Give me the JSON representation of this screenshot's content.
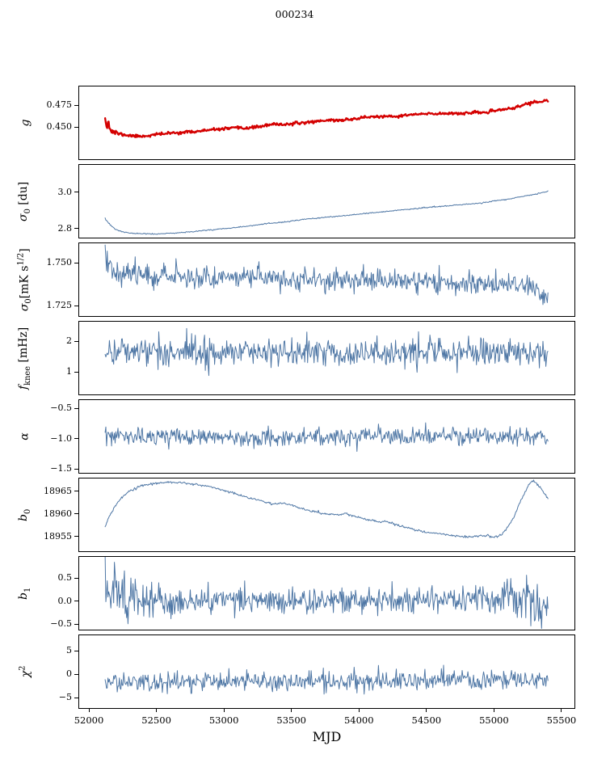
{
  "chart_data": {
    "type": "line",
    "title": "000234",
    "xlabel": "MJD",
    "x_range": [
      51922,
      55602
    ],
    "x_ticks": [
      52000,
      52500,
      53000,
      53500,
      54000,
      54500,
      55000,
      55500
    ],
    "x_tick_labels": [
      "52000",
      "52500",
      "53000",
      "53500",
      "54000",
      "54500",
      "55000",
      "55500"
    ],
    "x_data_range": [
      52120,
      55400
    ],
    "n_points": 620,
    "colors": {
      "line": "#4f77a5",
      "marker": "#d40000",
      "black": "#000000"
    },
    "legend": "none",
    "grid": false,
    "panels": [
      {
        "id": "g",
        "style": "marker-line",
        "seed": 11,
        "ylim": [
          0.4125,
          0.4975
        ],
        "yticks": [
          {
            "v": 0.45,
            "label": "0.450"
          },
          {
            "v": 0.475,
            "label": "0.475"
          }
        ],
        "ylabel_segments": [
          {
            "t": "g",
            "italic": true
          }
        ],
        "mean_keys": [
          [
            52120,
            0.4655
          ],
          [
            52130,
            0.452
          ],
          [
            52140,
            0.46
          ],
          [
            52155,
            0.4475
          ],
          [
            52170,
            0.4455
          ],
          [
            52200,
            0.4435
          ],
          [
            52250,
            0.4415
          ],
          [
            52300,
            0.4405
          ],
          [
            52350,
            0.4398
          ],
          [
            52400,
            0.4398
          ],
          [
            52450,
            0.4405
          ],
          [
            52500,
            0.4418
          ],
          [
            52600,
            0.4432
          ],
          [
            52700,
            0.4442
          ],
          [
            52800,
            0.4452
          ],
          [
            52900,
            0.4468
          ],
          [
            53000,
            0.4482
          ],
          [
            53050,
            0.4488
          ],
          [
            53100,
            0.4492
          ],
          [
            53150,
            0.4488
          ],
          [
            53250,
            0.4505
          ],
          [
            53350,
            0.4528
          ],
          [
            53400,
            0.4535
          ],
          [
            53450,
            0.4532
          ],
          [
            53550,
            0.4545
          ],
          [
            53650,
            0.4562
          ],
          [
            53750,
            0.4578
          ],
          [
            53800,
            0.4582
          ],
          [
            53850,
            0.4578
          ],
          [
            53950,
            0.4592
          ],
          [
            54050,
            0.4615
          ],
          [
            54150,
            0.4622
          ],
          [
            54250,
            0.4618
          ],
          [
            54300,
            0.4628
          ],
          [
            54400,
            0.4645
          ],
          [
            54500,
            0.4652
          ],
          [
            54600,
            0.4655
          ],
          [
            54700,
            0.4662
          ],
          [
            54750,
            0.4658
          ],
          [
            54850,
            0.4665
          ],
          [
            54950,
            0.4672
          ],
          [
            55000,
            0.4682
          ],
          [
            55050,
            0.4702
          ],
          [
            55100,
            0.4712
          ],
          [
            55150,
            0.4718
          ],
          [
            55200,
            0.4745
          ],
          [
            55250,
            0.4772
          ],
          [
            55300,
            0.4788
          ],
          [
            55350,
            0.4792
          ],
          [
            55400,
            0.4805
          ]
        ],
        "noise_keys": [
          [
            52120,
            0.0045
          ],
          [
            52160,
            0.002
          ],
          [
            52260,
            0.0008
          ],
          [
            55400,
            0.0008
          ]
        ]
      },
      {
        "id": "sigma0-du",
        "style": "line",
        "seed": 23,
        "ylim": [
          2.746,
          3.155
        ],
        "yticks": [
          {
            "v": 2.8,
            "label": "2.8"
          },
          {
            "v": 3.0,
            "label": "3.0"
          }
        ],
        "ylabel_segments": [
          {
            "t": "σ",
            "italic": true
          },
          {
            "t": "0",
            "sub": true
          },
          {
            "t": " [du]"
          }
        ],
        "mean_keys": [
          [
            52120,
            2.853
          ],
          [
            52150,
            2.825
          ],
          [
            52200,
            2.795
          ],
          [
            52250,
            2.782
          ],
          [
            52300,
            2.775
          ],
          [
            52400,
            2.772
          ],
          [
            52500,
            2.77
          ],
          [
            52600,
            2.774
          ],
          [
            52700,
            2.779
          ],
          [
            52800,
            2.786
          ],
          [
            52900,
            2.793
          ],
          [
            53000,
            2.8
          ],
          [
            53100,
            2.808
          ],
          [
            53200,
            2.816
          ],
          [
            53300,
            2.825
          ],
          [
            53400,
            2.833
          ],
          [
            53500,
            2.841
          ],
          [
            53600,
            2.851
          ],
          [
            53700,
            2.859
          ],
          [
            53800,
            2.865
          ],
          [
            53900,
            2.871
          ],
          [
            54000,
            2.879
          ],
          [
            54100,
            2.887
          ],
          [
            54200,
            2.894
          ],
          [
            54300,
            2.902
          ],
          [
            54400,
            2.909
          ],
          [
            54500,
            2.916
          ],
          [
            54600,
            2.922
          ],
          [
            54700,
            2.928
          ],
          [
            54800,
            2.934
          ],
          [
            54900,
            2.94
          ],
          [
            55000,
            2.952
          ],
          [
            55100,
            2.962
          ],
          [
            55200,
            2.975
          ],
          [
            55300,
            2.988
          ],
          [
            55400,
            3.005
          ]
        ],
        "noise_keys": [
          [
            52120,
            0.003
          ],
          [
            52250,
            0.0015
          ],
          [
            55400,
            0.0015
          ]
        ]
      },
      {
        "id": "sigma0-mks",
        "style": "line",
        "seed": 37,
        "ylim": [
          1.7184,
          1.7618
        ],
        "yticks": [
          {
            "v": 1.725,
            "label": "1.725"
          },
          {
            "v": 1.75,
            "label": "1.750"
          }
        ],
        "ylabel_segments": [
          {
            "t": "σ",
            "italic": true
          },
          {
            "t": "0",
            "sub": true
          },
          {
            "t": "[mK s"
          },
          {
            "t": "1/2",
            "sup": true
          },
          {
            "t": "]"
          }
        ],
        "mean_keys": [
          [
            52120,
            1.7555
          ],
          [
            52140,
            1.748
          ],
          [
            52160,
            1.7505
          ],
          [
            52200,
            1.7445
          ],
          [
            52300,
            1.7435
          ],
          [
            52400,
            1.744
          ],
          [
            52500,
            1.7425
          ],
          [
            52700,
            1.742
          ],
          [
            52900,
            1.7415
          ],
          [
            53100,
            1.742
          ],
          [
            53300,
            1.7415
          ],
          [
            53500,
            1.74
          ],
          [
            53700,
            1.7405
          ],
          [
            53900,
            1.7395
          ],
          [
            54100,
            1.7398
          ],
          [
            54300,
            1.7392
          ],
          [
            54500,
            1.7388
          ],
          [
            54700,
            1.7385
          ],
          [
            54900,
            1.738
          ],
          [
            55000,
            1.7375
          ],
          [
            55100,
            1.736
          ],
          [
            55200,
            1.7378
          ],
          [
            55300,
            1.7365
          ],
          [
            55350,
            1.73
          ],
          [
            55400,
            1.7315
          ]
        ],
        "noise_keys": [
          [
            52120,
            0.0042
          ],
          [
            52200,
            0.0034
          ],
          [
            53000,
            0.0032
          ],
          [
            55400,
            0.0032
          ]
        ]
      },
      {
        "id": "fknee",
        "style": "line",
        "seed": 41,
        "ylim": [
          0.24,
          2.66
        ],
        "yticks": [
          {
            "v": 1,
            "label": "1"
          },
          {
            "v": 2,
            "label": "2"
          }
        ],
        "ylabel_segments": [
          {
            "t": "f",
            "italic": true
          },
          {
            "t": "knee",
            "sub": true
          },
          {
            "t": " [mHz]"
          }
        ],
        "mean_keys": [
          [
            52120,
            1.7
          ],
          [
            52400,
            1.67
          ],
          [
            53000,
            1.65
          ],
          [
            54000,
            1.63
          ],
          [
            55000,
            1.64
          ],
          [
            55400,
            1.6
          ]
        ],
        "noise_keys": [
          [
            52120,
            0.23
          ],
          [
            55400,
            0.23
          ]
        ]
      },
      {
        "id": "alpha",
        "style": "line",
        "seed": 53,
        "ylim": [
          -1.58,
          -0.353
        ],
        "yticks": [
          {
            "v": -1.5,
            "label": "−1.5"
          },
          {
            "v": -1.0,
            "label": "−1.0"
          },
          {
            "v": -0.5,
            "label": "−0.5"
          }
        ],
        "ylabel_segments": [
          {
            "t": "α",
            "italic": true
          }
        ],
        "mean_keys": [
          [
            52120,
            -0.97
          ],
          [
            53000,
            -0.98
          ],
          [
            54000,
            -0.975
          ],
          [
            55400,
            -0.96
          ]
        ],
        "noise_keys": [
          [
            52120,
            0.07
          ],
          [
            55400,
            0.07
          ]
        ]
      },
      {
        "id": "b0",
        "style": "line",
        "seed": 67,
        "ylim": [
          18951.6,
          18968.0
        ],
        "yticks": [
          {
            "v": 18955,
            "label": "18955"
          },
          {
            "v": 18960,
            "label": "18960"
          },
          {
            "v": 18965,
            "label": "18965"
          }
        ],
        "ylabel_segments": [
          {
            "t": "b",
            "italic": true
          },
          {
            "t": "0",
            "sub": true
          }
        ],
        "mean_keys": [
          [
            52120,
            18957.2
          ],
          [
            52150,
            18959.5
          ],
          [
            52200,
            18962.0
          ],
          [
            52250,
            18963.8
          ],
          [
            52300,
            18965.0
          ],
          [
            52400,
            18966.3
          ],
          [
            52500,
            18966.8
          ],
          [
            52600,
            18967.0
          ],
          [
            52700,
            18966.9
          ],
          [
            52800,
            18966.5
          ],
          [
            52900,
            18966.0
          ],
          [
            53000,
            18965.2
          ],
          [
            53100,
            18964.3
          ],
          [
            53200,
            18963.4
          ],
          [
            53300,
            18962.7
          ],
          [
            53350,
            18962.3
          ],
          [
            53450,
            18962.4
          ],
          [
            53550,
            18961.5
          ],
          [
            53650,
            18960.6
          ],
          [
            53750,
            18960.0
          ],
          [
            53850,
            18959.8
          ],
          [
            53900,
            18960.1
          ],
          [
            53950,
            18959.6
          ],
          [
            54050,
            18958.8
          ],
          [
            54150,
            18958.3
          ],
          [
            54200,
            18958.4
          ],
          [
            54300,
            18957.4
          ],
          [
            54400,
            18956.6
          ],
          [
            54500,
            18956.0
          ],
          [
            54600,
            18955.6
          ],
          [
            54700,
            18955.2
          ],
          [
            54800,
            18954.9
          ],
          [
            54850,
            18955.1
          ],
          [
            54950,
            18955.2
          ],
          [
            55000,
            18954.9
          ],
          [
            55030,
            18955.0
          ],
          [
            55060,
            18955.6
          ],
          [
            55100,
            18957.0
          ],
          [
            55150,
            18959.5
          ],
          [
            55200,
            18963.0
          ],
          [
            55250,
            18966.0
          ],
          [
            55280,
            18967.2
          ],
          [
            55310,
            18967.0
          ],
          [
            55350,
            18965.5
          ],
          [
            55400,
            18963.5
          ]
        ],
        "noise_keys": [
          [
            52120,
            0.12
          ],
          [
            55400,
            0.12
          ]
        ]
      },
      {
        "id": "b1",
        "style": "line",
        "seed": 79,
        "ylim": [
          -0.64,
          0.974
        ],
        "yticks": [
          {
            "v": -0.5,
            "label": "−0.5"
          },
          {
            "v": 0.0,
            "label": "0.0"
          },
          {
            "v": 0.5,
            "label": "0.5"
          }
        ],
        "ylabel_segments": [
          {
            "t": "b",
            "italic": true
          },
          {
            "t": "1",
            "sub": true
          }
        ],
        "mean_keys": [
          [
            52120,
            0.18
          ],
          [
            52200,
            0.05
          ],
          [
            52400,
            0.0
          ],
          [
            53000,
            0.01
          ],
          [
            54500,
            0.01
          ],
          [
            55000,
            0.03
          ],
          [
            55150,
            0.15
          ],
          [
            55250,
            0.1
          ],
          [
            55350,
            -0.2
          ],
          [
            55400,
            -0.25
          ]
        ],
        "noise_keys": [
          [
            52120,
            0.32
          ],
          [
            52250,
            0.28
          ],
          [
            52450,
            0.16
          ],
          [
            53000,
            0.14
          ],
          [
            54500,
            0.14
          ],
          [
            55000,
            0.16
          ],
          [
            55100,
            0.25
          ],
          [
            55200,
            0.3
          ],
          [
            55300,
            0.25
          ],
          [
            55400,
            0.18
          ]
        ]
      },
      {
        "id": "chi2",
        "style": "line",
        "seed": 97,
        "ylim": [
          -7.41,
          8.45
        ],
        "yticks": [
          {
            "v": -5,
            "label": "−5"
          },
          {
            "v": 0,
            "label": "0"
          },
          {
            "v": 5,
            "label": "5"
          }
        ],
        "ylabel_segments": [
          {
            "t": "χ",
            "italic": true
          },
          {
            "t": "2",
            "sup": true
          }
        ],
        "mean_keys": [
          [
            52120,
            -1.4
          ],
          [
            52300,
            -2.0
          ],
          [
            52500,
            -1.8
          ],
          [
            53000,
            -1.7
          ],
          [
            53500,
            -1.5
          ],
          [
            54000,
            -1.6
          ],
          [
            54500,
            -1.4
          ],
          [
            55000,
            -1.3
          ],
          [
            55400,
            -1.2
          ]
        ],
        "noise_keys": [
          [
            52120,
            1.05
          ],
          [
            55400,
            1.05
          ]
        ]
      }
    ]
  }
}
